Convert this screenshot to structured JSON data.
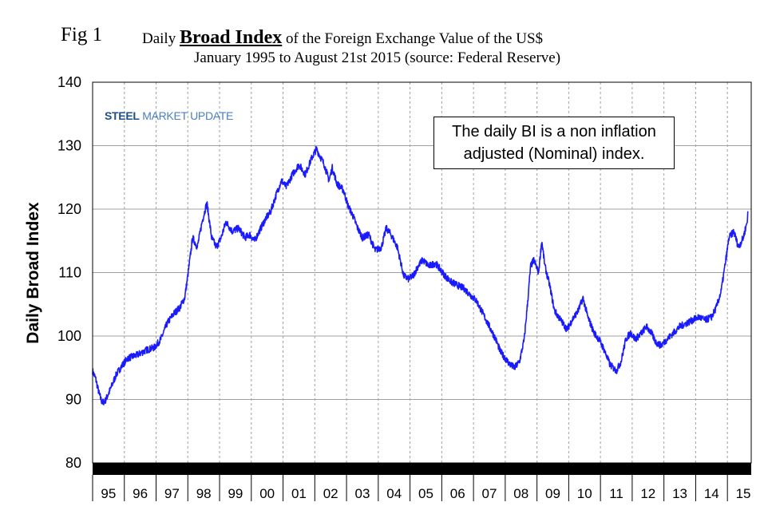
{
  "figure": {
    "fig_label": "Fig 1",
    "title_prefix": "Daily",
    "title_bold": "Broad Index",
    "title_suffix": "of the Foreign Exchange Value of the US$",
    "subtitle": "January 1995 to August 21st 2015 (source: Federal Reserve)",
    "logo_steel": "STEEL",
    "logo_rest": "MARKET UPDATE",
    "note_line1": "The daily BI is a non inflation",
    "note_line2": "adjusted (Nominal) index."
  },
  "colors": {
    "line": "#1a1aff",
    "grid": "#a0a0a0",
    "axis_bar": "#000000"
  },
  "chart_data": {
    "type": "line",
    "title": "Daily Broad Index of the Foreign Exchange Value of the US$",
    "subtitle": "January 1995 to August 21st 2015 (source: Federal Reserve)",
    "xlabel": "",
    "ylabel": "Daily Broad Index",
    "ylim": [
      80,
      140
    ],
    "yticks": [
      80,
      90,
      100,
      110,
      120,
      130,
      140
    ],
    "xlim": [
      1995.0,
      2015.75
    ],
    "xtick_labels": [
      "95",
      "96",
      "97",
      "98",
      "99",
      "00",
      "01",
      "02",
      "03",
      "04",
      "05",
      "06",
      "07",
      "08",
      "09",
      "10",
      "11",
      "12",
      "13",
      "14",
      "15"
    ],
    "grid": "vertical dashed at year boundaries, horizontal solid at y ticks",
    "series": [
      {
        "values": [
          [
            1995.0,
            94.5
          ],
          [
            1995.1,
            93.2
          ],
          [
            1995.2,
            91.0
          ],
          [
            1995.3,
            89.5
          ],
          [
            1995.4,
            89.8
          ],
          [
            1995.55,
            91.5
          ],
          [
            1995.75,
            94.0
          ],
          [
            1995.95,
            95.5
          ],
          [
            1996.1,
            96.5
          ],
          [
            1996.4,
            97.0
          ],
          [
            1996.7,
            97.8
          ],
          [
            1996.95,
            98.2
          ],
          [
            1997.15,
            99.5
          ],
          [
            1997.35,
            102.0
          ],
          [
            1997.55,
            103.5
          ],
          [
            1997.75,
            104.5
          ],
          [
            1997.9,
            106.0
          ],
          [
            1998.0,
            109.5
          ],
          [
            1998.15,
            115.5
          ],
          [
            1998.3,
            114.0
          ],
          [
            1998.45,
            118.0
          ],
          [
            1998.6,
            121.0
          ],
          [
            1998.75,
            115.5
          ],
          [
            1998.9,
            114.0
          ],
          [
            1999.05,
            115.5
          ],
          [
            1999.2,
            118.0
          ],
          [
            1999.4,
            116.5
          ],
          [
            1999.6,
            117.0
          ],
          [
            1999.8,
            115.5
          ],
          [
            1999.95,
            116.0
          ],
          [
            2000.1,
            115.0
          ],
          [
            2000.25,
            116.5
          ],
          [
            2000.45,
            118.5
          ],
          [
            2000.6,
            119.5
          ],
          [
            2000.8,
            122.5
          ],
          [
            2000.95,
            124.5
          ],
          [
            2001.1,
            123.5
          ],
          [
            2001.3,
            125.5
          ],
          [
            2001.5,
            127.0
          ],
          [
            2001.7,
            125.5
          ],
          [
            2001.9,
            128.0
          ],
          [
            2002.05,
            129.5
          ],
          [
            2002.15,
            128.5
          ],
          [
            2002.3,
            127.0
          ],
          [
            2002.45,
            124.5
          ],
          [
            2002.55,
            126.5
          ],
          [
            2002.7,
            124.0
          ],
          [
            2002.9,
            123.0
          ],
          [
            2003.05,
            120.5
          ],
          [
            2003.2,
            119.0
          ],
          [
            2003.35,
            117.0
          ],
          [
            2003.5,
            115.5
          ],
          [
            2003.7,
            116.0
          ],
          [
            2003.9,
            113.5
          ],
          [
            2004.1,
            114.0
          ],
          [
            2004.25,
            117.0
          ],
          [
            2004.4,
            116.0
          ],
          [
            2004.6,
            114.0
          ],
          [
            2004.8,
            109.5
          ],
          [
            2004.95,
            109.0
          ],
          [
            2005.1,
            109.5
          ],
          [
            2005.25,
            111.0
          ],
          [
            2005.4,
            112.0
          ],
          [
            2005.6,
            111.0
          ],
          [
            2005.8,
            111.5
          ],
          [
            2005.95,
            110.5
          ],
          [
            2006.1,
            109.5
          ],
          [
            2006.3,
            108.5
          ],
          [
            2006.5,
            108.0
          ],
          [
            2006.7,
            107.5
          ],
          [
            2006.9,
            106.5
          ],
          [
            2007.1,
            105.5
          ],
          [
            2007.3,
            103.5
          ],
          [
            2007.5,
            101.5
          ],
          [
            2007.7,
            99.5
          ],
          [
            2007.85,
            97.5
          ],
          [
            2008.0,
            96.5
          ],
          [
            2008.15,
            95.5
          ],
          [
            2008.3,
            95.0
          ],
          [
            2008.45,
            96.0
          ],
          [
            2008.6,
            99.5
          ],
          [
            2008.7,
            105.0
          ],
          [
            2008.8,
            111.0
          ],
          [
            2008.9,
            112.0
          ],
          [
            2009.05,
            110.0
          ],
          [
            2009.15,
            115.0
          ],
          [
            2009.25,
            111.0
          ],
          [
            2009.4,
            108.0
          ],
          [
            2009.55,
            104.0
          ],
          [
            2009.75,
            102.5
          ],
          [
            2009.95,
            101.0
          ],
          [
            2010.1,
            102.5
          ],
          [
            2010.3,
            104.0
          ],
          [
            2010.45,
            106.0
          ],
          [
            2010.6,
            103.0
          ],
          [
            2010.8,
            100.5
          ],
          [
            2010.95,
            99.5
          ],
          [
            2011.1,
            98.0
          ],
          [
            2011.3,
            95.5
          ],
          [
            2011.5,
            94.5
          ],
          [
            2011.65,
            96.0
          ],
          [
            2011.8,
            99.5
          ],
          [
            2011.95,
            100.5
          ],
          [
            2012.1,
            99.5
          ],
          [
            2012.3,
            100.5
          ],
          [
            2012.45,
            101.5
          ],
          [
            2012.6,
            100.5
          ],
          [
            2012.75,
            99.0
          ],
          [
            2012.9,
            98.5
          ],
          [
            2013.1,
            99.5
          ],
          [
            2013.3,
            100.5
          ],
          [
            2013.5,
            101.5
          ],
          [
            2013.7,
            102.0
          ],
          [
            2013.9,
            102.5
          ],
          [
            2014.1,
            103.0
          ],
          [
            2014.3,
            102.5
          ],
          [
            2014.5,
            103.0
          ],
          [
            2014.65,
            104.5
          ],
          [
            2014.8,
            107.0
          ],
          [
            2014.95,
            112.0
          ],
          [
            2015.05,
            115.5
          ],
          [
            2015.2,
            116.5
          ],
          [
            2015.35,
            114.0
          ],
          [
            2015.5,
            115.5
          ],
          [
            2015.62,
            118.0
          ],
          [
            2015.65,
            119.5
          ]
        ]
      }
    ]
  }
}
